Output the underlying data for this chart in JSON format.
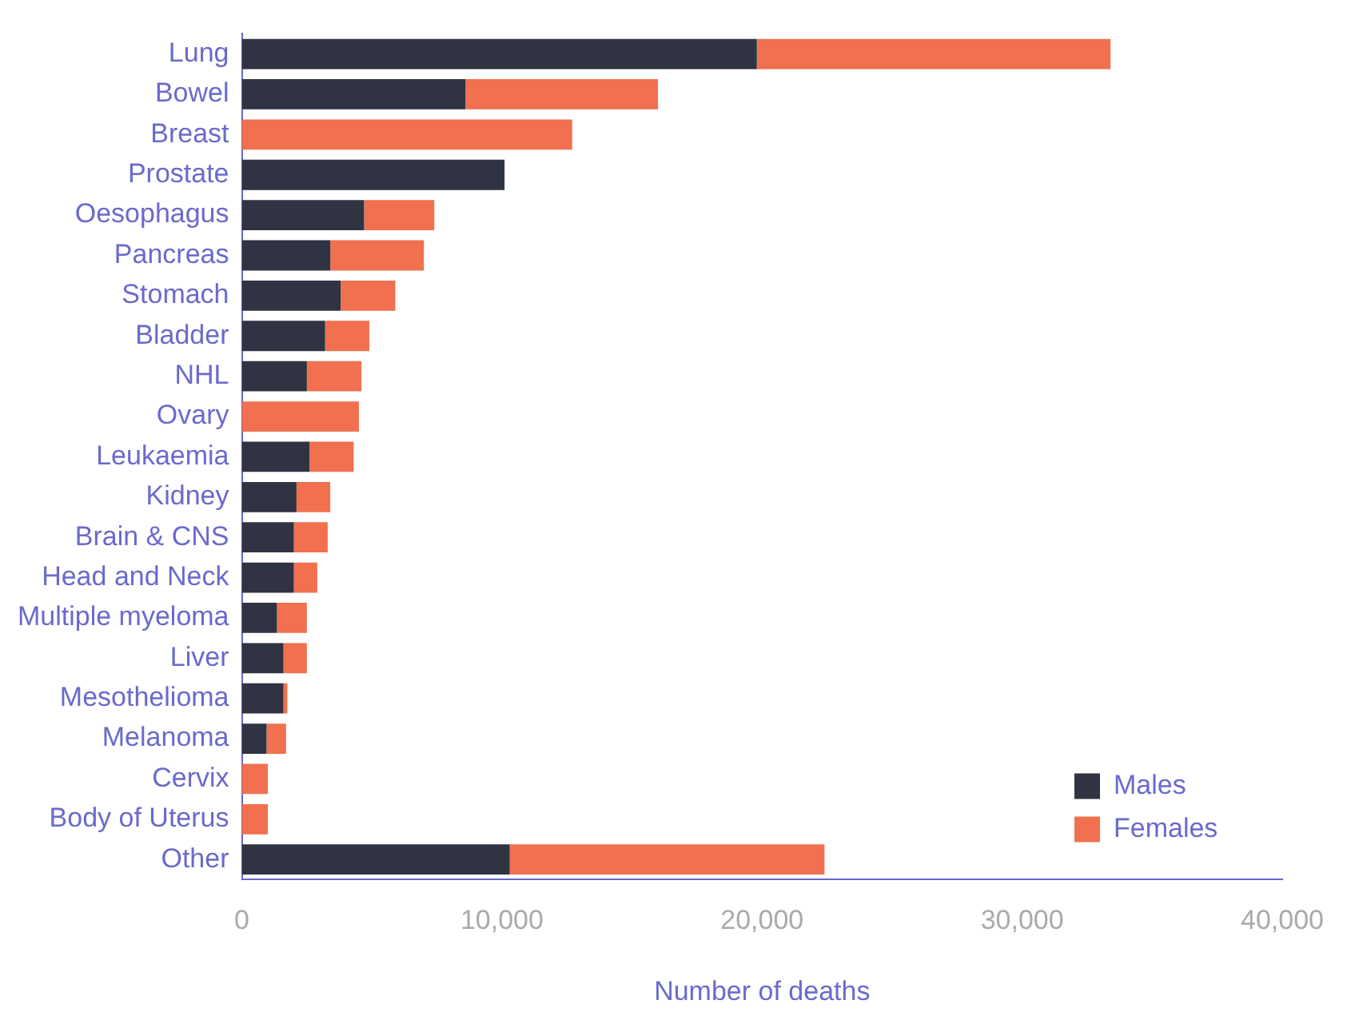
{
  "chart_data": {
    "type": "bar",
    "orientation": "horizontal",
    "stacked": true,
    "xlabel": "Number of deaths",
    "categories": [
      "Lung",
      "Bowel",
      "Breast",
      "Prostate",
      "Oesophagus",
      "Pancreas",
      "Stomach",
      "Bladder",
      "NHL",
      "Ovary",
      "Leukaemia",
      "Kidney",
      "Brain & CNS",
      "Head and Neck",
      "Multiple myeloma",
      "Liver",
      "Mesothelioma",
      "Melanoma",
      "Cervix",
      "Body of Uterus",
      "Other"
    ],
    "series": [
      {
        "name": "Males",
        "color": "#2f3342",
        "values": [
          19800,
          8600,
          0,
          10100,
          4700,
          3400,
          3800,
          3200,
          2500,
          0,
          2600,
          2100,
          2000,
          2000,
          1350,
          1600,
          1600,
          950,
          0,
          0,
          10300
        ]
      },
      {
        "name": "Females",
        "color": "#f07050",
        "values": [
          13600,
          7400,
          12700,
          0,
          2700,
          3600,
          2100,
          1700,
          2100,
          4500,
          1700,
          1300,
          1300,
          900,
          1150,
          900,
          150,
          750,
          1000,
          1000,
          12100
        ]
      }
    ],
    "xlim": [
      0,
      40000
    ],
    "xticks": [
      {
        "value": 0,
        "label": "0"
      },
      {
        "value": 10000,
        "label": "10,000"
      },
      {
        "value": 20000,
        "label": "20,000"
      },
      {
        "value": 30000,
        "label": "30,000"
      },
      {
        "value": 40000,
        "label": "40,000"
      }
    ],
    "grid": false,
    "legend": "bottom right"
  }
}
